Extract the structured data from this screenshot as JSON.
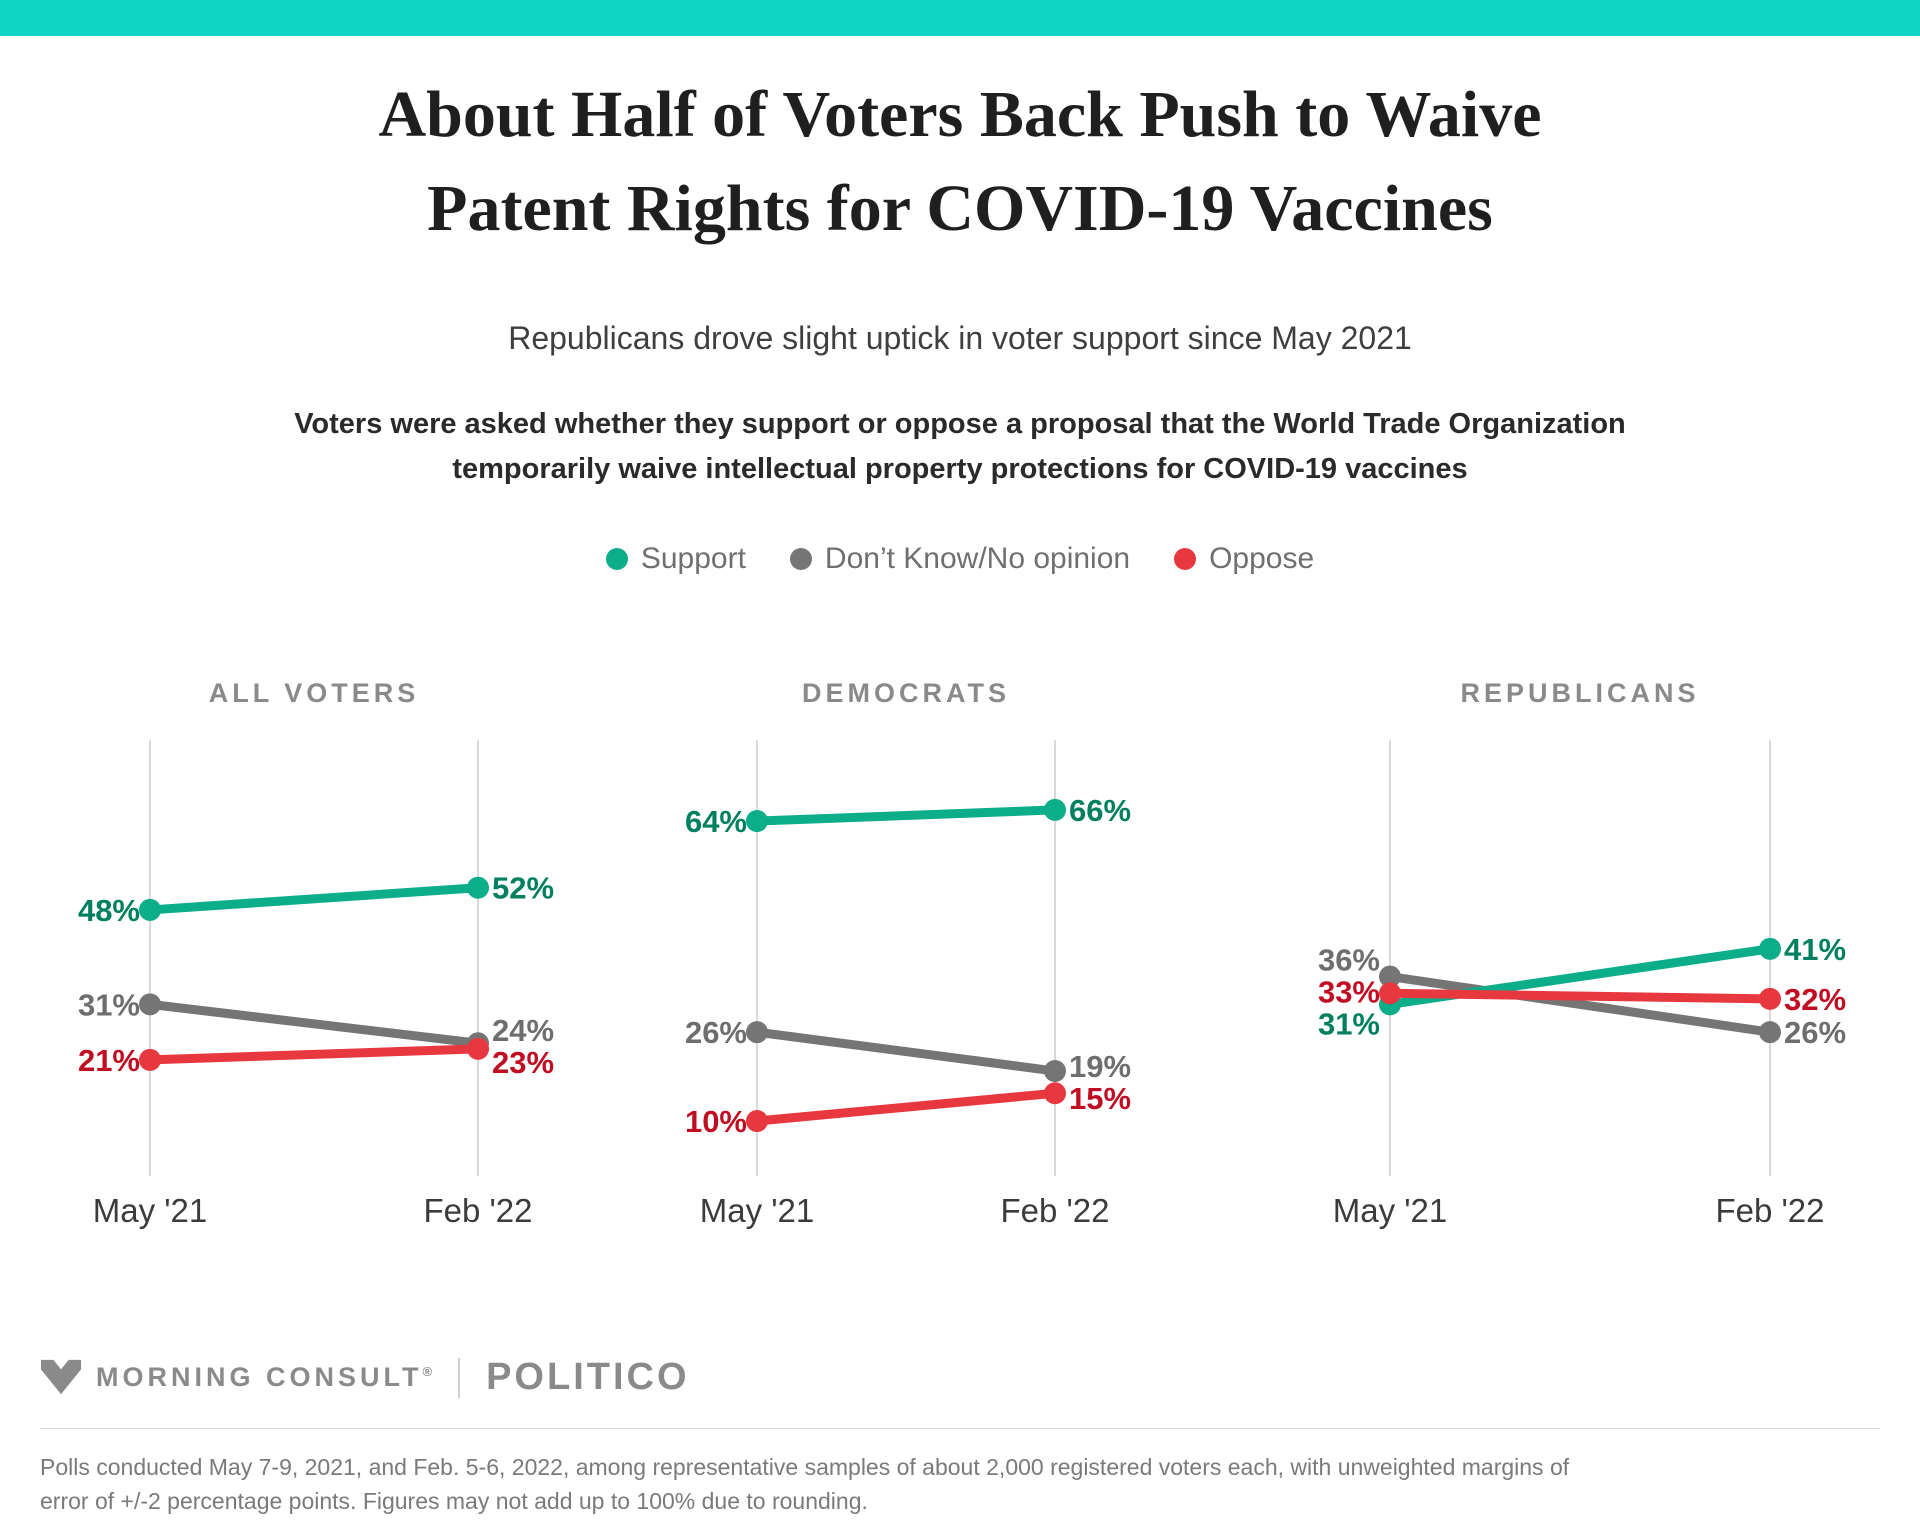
{
  "header": {
    "bar_color": "#11D6C6",
    "title_lines": [
      "About Half of Voters Back Push to Waive",
      "Patent Rights for COVID-19 Vaccines"
    ],
    "subtitle": "Republicans drove slight uptick in voter support since May 2021",
    "question_lines": [
      "Voters were asked whether they support or oppose a proposal that the World Trade Organization",
      "temporarily waive intellectual property protections for COVID-19 vaccines"
    ]
  },
  "legend": {
    "text_color": "#6F6F6F",
    "items": [
      {
        "label": "Support",
        "color": "#0CAD89",
        "label_color": "#00805F"
      },
      {
        "label": "Don’t Know/No opinion",
        "color": "#757575",
        "label_color": "#6E6E6E"
      },
      {
        "label": "Oppose",
        "color": "#E8383F",
        "label_color": "#C00D22"
      }
    ]
  },
  "chart_data": {
    "type": "line",
    "unit": "%",
    "x": [
      "May '21",
      "Feb '22"
    ],
    "ylim": [
      0,
      82
    ],
    "grid": "vertical-only",
    "legend_position": "top",
    "panel_title_color": "#8A8A8A",
    "tick_color": "#3B3B3B",
    "grid_color": "#D9D9D9",
    "panels": [
      {
        "title": "ALL VOTERS",
        "series": [
          {
            "name": "Support",
            "values": [
              48,
              52
            ]
          },
          {
            "name": "Don’t Know/No opinion",
            "values": [
              31,
              24
            ]
          },
          {
            "name": "Oppose",
            "values": [
              21,
              23
            ]
          }
        ]
      },
      {
        "title": "DEMOCRATS",
        "series": [
          {
            "name": "Support",
            "values": [
              64,
              66
            ]
          },
          {
            "name": "Don’t Know/No opinion",
            "values": [
              26,
              19
            ]
          },
          {
            "name": "Oppose",
            "values": [
              10,
              15
            ]
          }
        ]
      },
      {
        "title": "REPUBLICANS",
        "series": [
          {
            "name": "Support",
            "values": [
              31,
              41
            ]
          },
          {
            "name": "Don’t Know/No opinion",
            "values": [
              36,
              26
            ]
          },
          {
            "name": "Oppose",
            "values": [
              33,
              32
            ]
          }
        ]
      }
    ]
  },
  "footer": {
    "brand1": "MORNING CONSULT",
    "brand1_registered": "®",
    "brand2": "POLITICO",
    "footnote_lines": [
      "Polls conducted May 7-9, 2021, and Feb. 5-6, 2022, among representative samples of about 2,000 registered voters each, with unweighted margins of",
      "error of +/-2 percentage points. Figures may not add up to 100% due to rounding."
    ]
  }
}
